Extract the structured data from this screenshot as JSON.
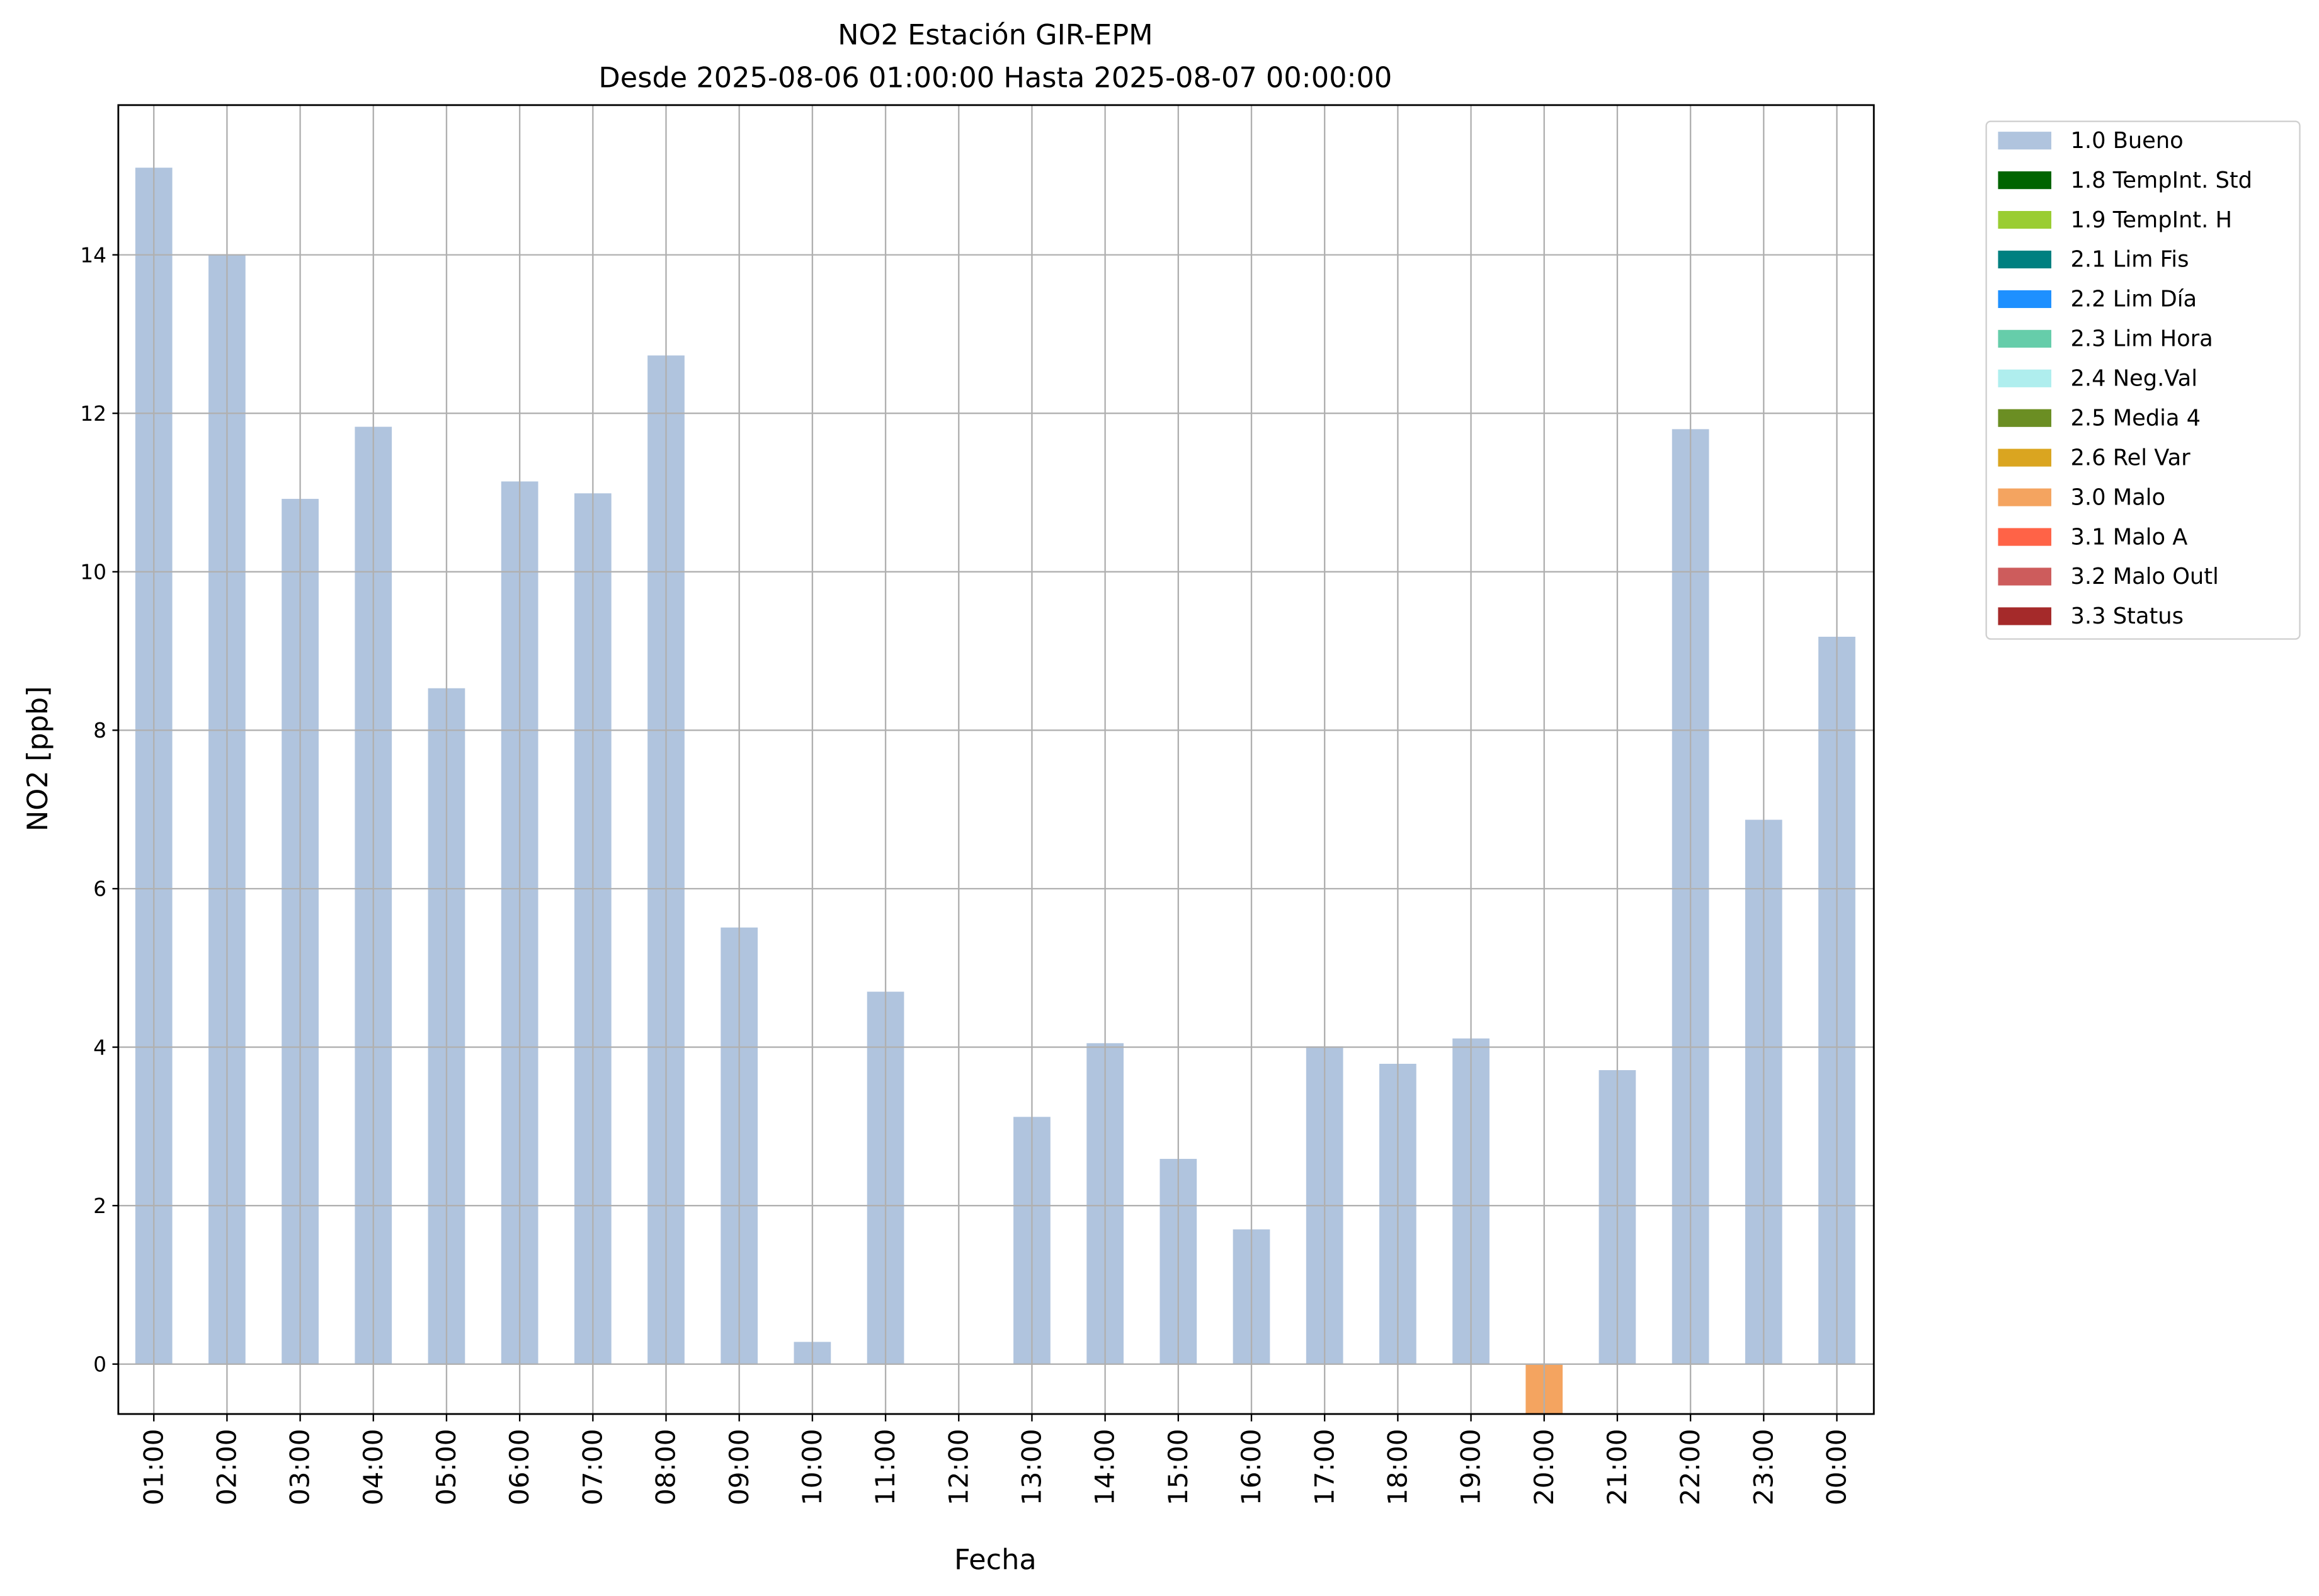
{
  "chart_data": {
    "type": "bar",
    "title": "NO2 Estación GIR-EPM",
    "subtitle": "Desde 2025-08-06 01:00:00 Hasta 2025-08-07 00:00:00",
    "xlabel": "Fecha",
    "ylabel": "NO2 [ppb]",
    "ylim": [
      -0.63,
      15.89
    ],
    "yticks": [
      0,
      2,
      4,
      6,
      8,
      10,
      12,
      14
    ],
    "grid": true,
    "legend_position": "outside-right-top",
    "categories": [
      "01:00",
      "02:00",
      "03:00",
      "04:00",
      "05:00",
      "06:00",
      "07:00",
      "08:00",
      "09:00",
      "10:00",
      "11:00",
      "12:00",
      "13:00",
      "14:00",
      "15:00",
      "16:00",
      "17:00",
      "18:00",
      "19:00",
      "20:00",
      "21:00",
      "22:00",
      "23:00",
      "00:00"
    ],
    "values": [
      15.1,
      14.0,
      10.92,
      11.83,
      8.53,
      11.14,
      10.99,
      12.73,
      5.51,
      0.28,
      4.7,
      null,
      3.12,
      4.05,
      2.59,
      1.7,
      4.01,
      3.79,
      4.11,
      -0.63,
      3.71,
      11.8,
      6.87,
      9.18
    ],
    "flags": [
      "1.0 Bueno",
      "1.0 Bueno",
      "1.0 Bueno",
      "1.0 Bueno",
      "1.0 Bueno",
      "1.0 Bueno",
      "1.0 Bueno",
      "1.0 Bueno",
      "1.0 Bueno",
      "1.0 Bueno",
      "1.0 Bueno",
      null,
      "1.0 Bueno",
      "1.0 Bueno",
      "1.0 Bueno",
      "1.0 Bueno",
      "1.0 Bueno",
      "1.0 Bueno",
      "1.0 Bueno",
      "3.0 Malo",
      "1.0 Bueno",
      "1.0 Bueno",
      "1.0 Bueno",
      "1.0 Bueno"
    ],
    "legend": [
      {
        "label": "1.0 Bueno",
        "color": "#b0c4de"
      },
      {
        "label": "1.8 TempInt. Std",
        "color": "#006400"
      },
      {
        "label": "1.9 TempInt. H",
        "color": "#9acd32"
      },
      {
        "label": "2.1 Lim Fis",
        "color": "#008080"
      },
      {
        "label": "2.2 Lim Día",
        "color": "#1e90ff"
      },
      {
        "label": "2.3 Lim Hora",
        "color": "#66cdaa"
      },
      {
        "label": "2.4 Neg.Val",
        "color": "#afeeee"
      },
      {
        "label": "2.5 Media 4",
        "color": "#6b8e23"
      },
      {
        "label": "2.6 Rel Var",
        "color": "#daa520"
      },
      {
        "label": "3.0 Malo",
        "color": "#f4a460"
      },
      {
        "label": "3.1 Malo A",
        "color": "#ff6347"
      },
      {
        "label": "3.2 Malo Outl",
        "color": "#cd5c5c"
      },
      {
        "label": "3.3 Status",
        "color": "#a52a2a"
      }
    ]
  }
}
